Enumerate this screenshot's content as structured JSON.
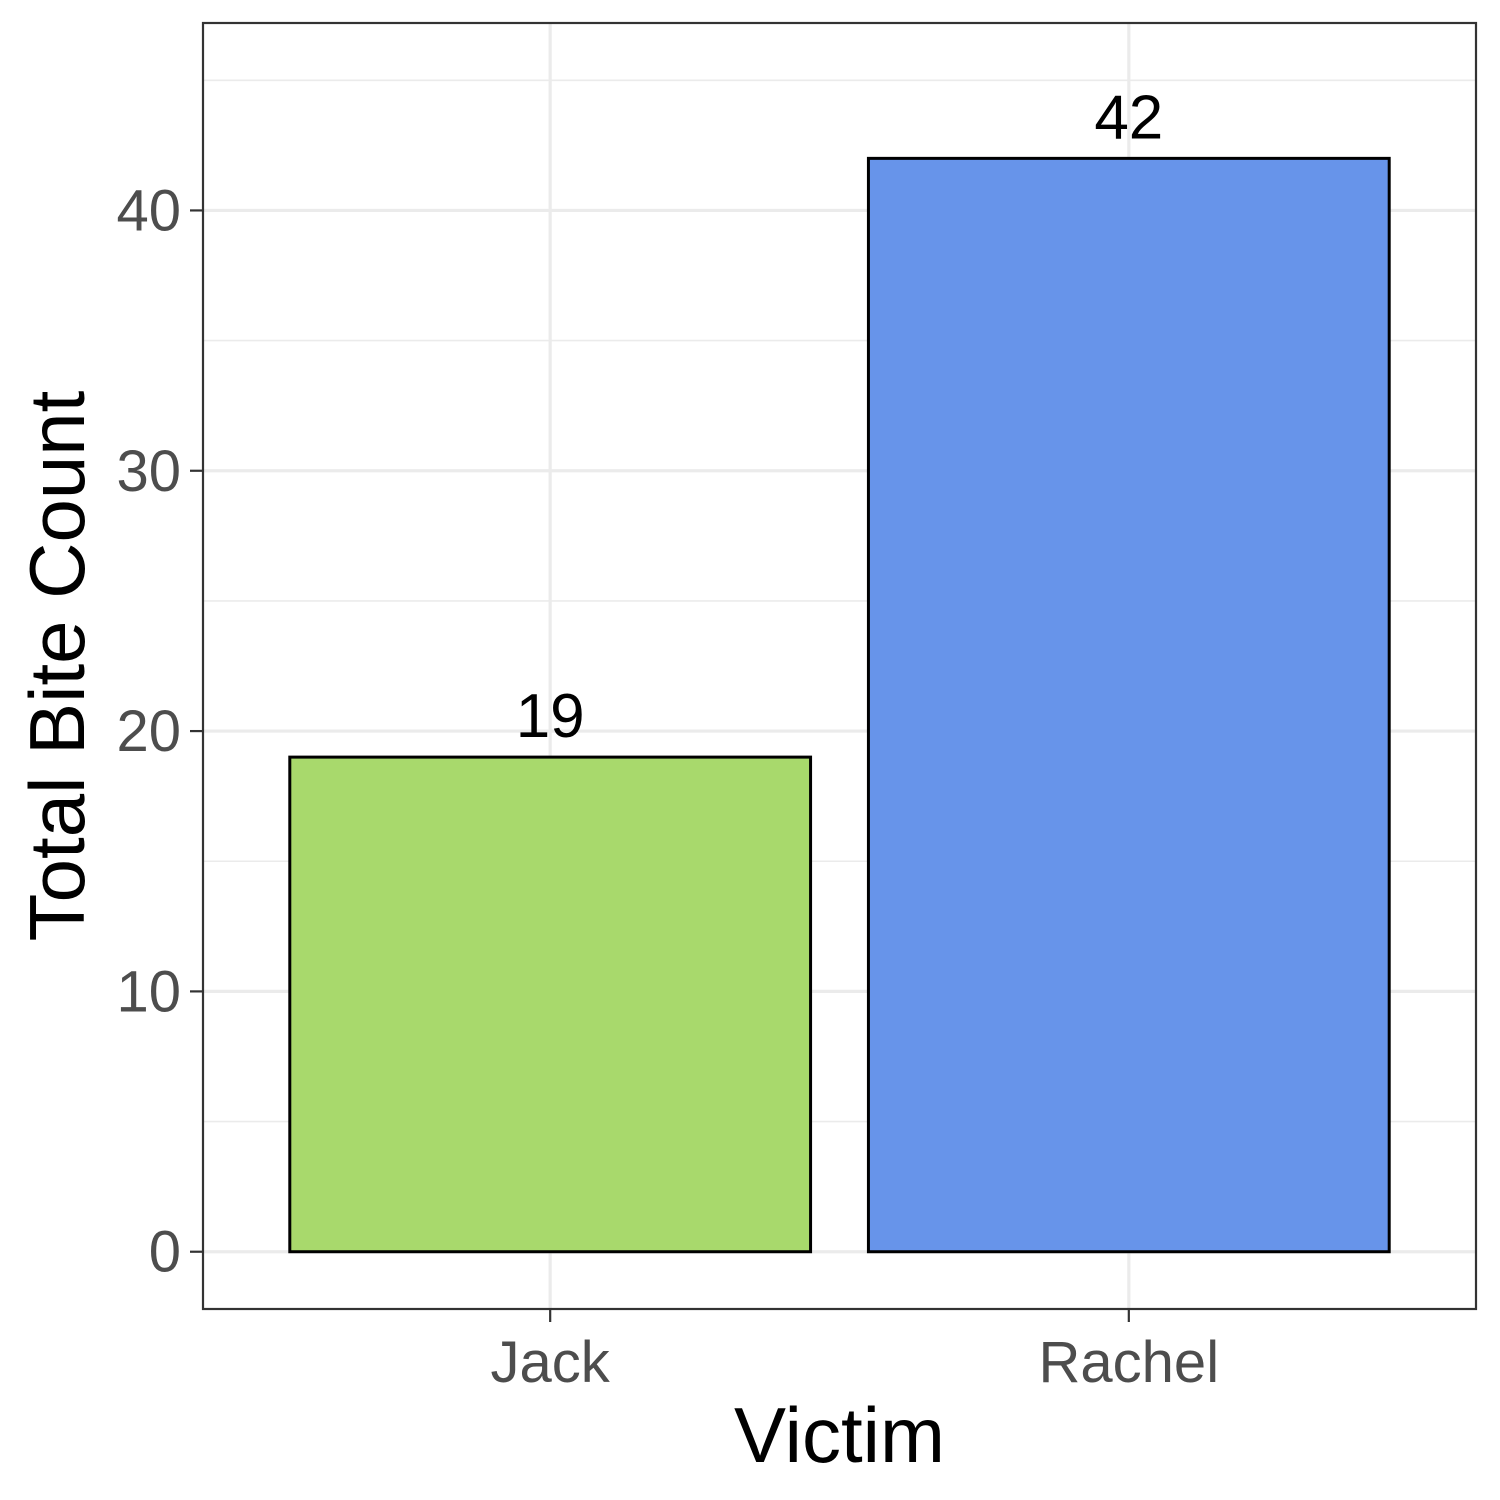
{
  "chart_data": {
    "type": "bar",
    "categories": [
      "Jack",
      "Rachel"
    ],
    "values": [
      19,
      42
    ],
    "data_labels": [
      "19",
      "42"
    ],
    "colors": [
      "#a8d96c",
      "#6794ea"
    ],
    "bar_outline_color": "#000000",
    "xlabel": "Victim",
    "ylabel": "Total Bite Count",
    "ylim": [
      -2.2,
      47.2
    ],
    "y_ticks": [
      0,
      10,
      20,
      30,
      40
    ],
    "y_tick_labels": [
      "0",
      "10",
      "20",
      "30",
      "40"
    ],
    "y_minor_ticks": [
      5,
      15,
      25,
      35,
      45
    ],
    "grid": true,
    "legend": "none",
    "theme": "bw"
  }
}
